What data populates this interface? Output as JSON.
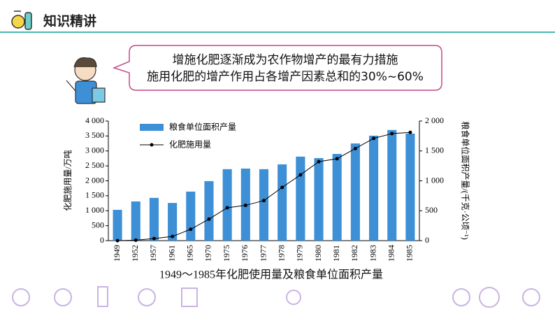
{
  "header": {
    "title": "知识精讲"
  },
  "speech": {
    "lines": [
      "增施化肥逐渐成为农作物增产的最有力措施",
      "施用化肥的增产作用占各增产因素总和的30%~60%"
    ]
  },
  "chart_data": {
    "type": "bar",
    "title": "1949～1985年化肥使用量及粮食单位面积产量",
    "y_label": "化肥施用量/万吨",
    "y2_label": "粮食单位面积产量/(千克·公顷⁻¹)",
    "categories": [
      "1949",
      "1952",
      "1957",
      "1961",
      "1965",
      "1970",
      "1975",
      "1976",
      "1977",
      "1978",
      "1979",
      "1980",
      "1981",
      "1982",
      "1983",
      "1984",
      "1985"
    ],
    "series": [
      {
        "name": "粮食单位面积产量",
        "type": "bar",
        "color": "#3d8fd6",
        "values": [
          1030,
          1310,
          1430,
          1260,
          1640,
          1990,
          2390,
          2410,
          2390,
          2550,
          2810,
          2760,
          2900,
          3250,
          3510,
          3700,
          3580
        ]
      },
      {
        "name": "化肥施用量",
        "type": "line",
        "color": "#000000",
        "axis": "y2",
        "values": [
          0,
          8,
          35,
          70,
          190,
          360,
          550,
          590,
          670,
          890,
          1100,
          1320,
          1370,
          1540,
          1710,
          1790,
          1810
        ]
      }
    ],
    "ylim": [
      0,
      4000
    ],
    "yticks": [
      0,
      500,
      {
        "value": 1000,
        "label": "1 000"
      },
      {
        "value": 1500,
        "label": "1 500"
      },
      {
        "value": 2000,
        "label": "2 000"
      },
      {
        "value": 2500,
        "label": "2 500"
      },
      {
        "value": 3000,
        "label": "3 000"
      },
      {
        "value": 3500,
        "label": "3 500"
      },
      {
        "value": 4000,
        "label": "4 000"
      }
    ],
    "y2lim": [
      0,
      2000
    ],
    "y2ticks": [
      0,
      500,
      {
        "value": 1000,
        "label": "1 000"
      },
      {
        "value": 1500,
        "label": "1 500"
      },
      {
        "value": 2000,
        "label": "2 000"
      }
    ],
    "legend": "upper-left",
    "grid": false
  }
}
